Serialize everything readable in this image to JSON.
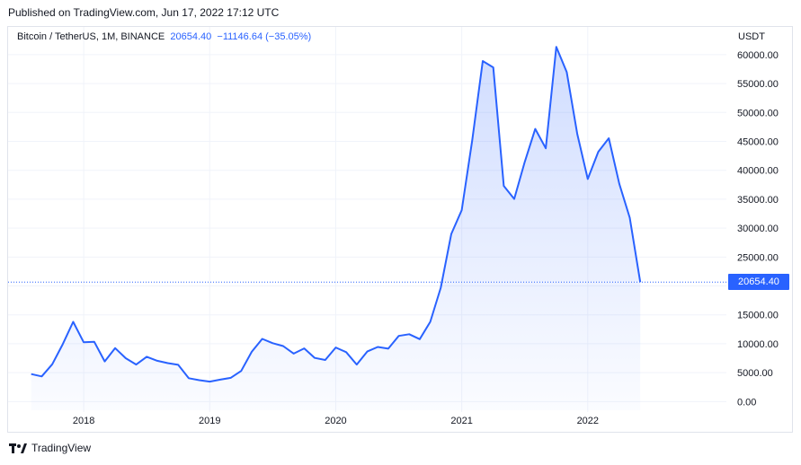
{
  "header": {
    "published": "Published on TradingView.com, Jun 17, 2022 17:12 UTC"
  },
  "legend": {
    "symbol": "Bitcoin / TetherUS, 1M, BINANCE",
    "last": "20654.40",
    "change": "−11146.64 (−35.05%)"
  },
  "price_axis": {
    "unit": "USDT",
    "last_badge": "20654.40"
  },
  "footer": {
    "brand": "TradingView"
  },
  "colors": {
    "line": "#2962ff",
    "badge": "#2962ff",
    "grid": "#f0f3fa"
  },
  "chart_data": {
    "type": "area",
    "title": "",
    "xlabel": "",
    "ylabel": "",
    "ylim": [
      -1500,
      62000
    ],
    "grid": true,
    "y_ticks": [
      0,
      5000,
      10000,
      15000,
      20000,
      25000,
      30000,
      35000,
      40000,
      45000,
      50000,
      55000,
      60000
    ],
    "y_tick_labels": [
      "0.00",
      "5000.00",
      "10000.00",
      "15000.00",
      "20000.00",
      "25000.00",
      "30000.00",
      "35000.00",
      "40000.00",
      "45000.00",
      "50000.00",
      "55000.00",
      "60000.00"
    ],
    "x_ticks": [
      "2018",
      "2019",
      "2020",
      "2021",
      "2022"
    ],
    "last_value": 20654.4,
    "series": [
      {
        "x": [
          "2017-08",
          "2017-09",
          "2017-10",
          "2017-11",
          "2017-12",
          "2018-01",
          "2018-02",
          "2018-03",
          "2018-04",
          "2018-05",
          "2018-06",
          "2018-07",
          "2018-08",
          "2018-09",
          "2018-10",
          "2018-11",
          "2018-12",
          "2019-01",
          "2019-02",
          "2019-03",
          "2019-04",
          "2019-05",
          "2019-06",
          "2019-07",
          "2019-08",
          "2019-09",
          "2019-10",
          "2019-11",
          "2019-12",
          "2020-01",
          "2020-02",
          "2020-03",
          "2020-04",
          "2020-05",
          "2020-06",
          "2020-07",
          "2020-08",
          "2020-09",
          "2020-10",
          "2020-11",
          "2020-12",
          "2021-01",
          "2021-02",
          "2021-03",
          "2021-04",
          "2021-05",
          "2021-06",
          "2021-07",
          "2021-08",
          "2021-09",
          "2021-10",
          "2021-11",
          "2021-12",
          "2022-01",
          "2022-02",
          "2022-03",
          "2022-04",
          "2022-05",
          "2022-06"
        ],
        "values": [
          4750,
          4350,
          6450,
          9900,
          13800,
          10250,
          10350,
          6950,
          9250,
          7500,
          6400,
          7750,
          7050,
          6650,
          6350,
          4050,
          3700,
          3450,
          3800,
          4100,
          5300,
          8600,
          10850,
          10100,
          9600,
          8300,
          9200,
          7550,
          7200,
          9350,
          8550,
          6400,
          8650,
          9450,
          9150,
          11350,
          11650,
          10800,
          13800,
          19700,
          29000,
          33100,
          45200,
          58900,
          57800,
          37300,
          35050,
          41450,
          47150,
          43800,
          61350,
          57000,
          46300,
          38500,
          43200,
          45550,
          37650,
          31800,
          20654.4
        ]
      }
    ]
  }
}
